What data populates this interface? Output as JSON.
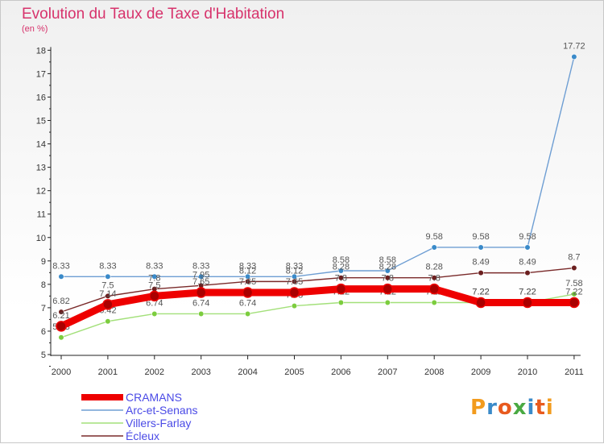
{
  "title": "Evolution du Taux de Taxe d'Habitation",
  "unit": "(en %)",
  "logo": "Proxiti",
  "chart_data": {
    "type": "line",
    "title": "Evolution du Taux de Taxe d'Habitation",
    "ylabel": "(en %)",
    "xlabel": "",
    "ylim": [
      5,
      18
    ],
    "yticks": [
      "5",
      "6",
      "7",
      "8",
      "9",
      "10",
      "11",
      "12",
      "13",
      "14",
      "15",
      "16",
      "17",
      "18"
    ],
    "x": [
      "2000",
      "2001",
      "2002",
      "2003",
      "2004",
      "2005",
      "2006",
      "2007",
      "2008",
      "2009",
      "2010",
      "2011"
    ],
    "grid": false,
    "legend_position": "bottom-left",
    "series": [
      {
        "name": "Arc-et-Senans",
        "color": "#6e9ed3",
        "marker": "#3a8ac9",
        "values": [
          8.33,
          8.33,
          8.33,
          8.33,
          8.33,
          8.33,
          8.58,
          8.58,
          9.58,
          9.58,
          9.58,
          17.72
        ],
        "labels": [
          "8.33",
          "8.33",
          "8.33",
          "8.33",
          "8.33",
          "8.33",
          "8.58",
          "8.58",
          "9.58",
          "9.58",
          "9.58",
          "17.72"
        ]
      },
      {
        "name": "Villers-Farlay",
        "color": "#a3e07a",
        "marker": "#7ccd3e",
        "values": [
          5.73,
          6.42,
          6.74,
          6.74,
          6.74,
          7.08,
          7.22,
          7.22,
          7.22,
          7.22,
          7.22,
          7.58
        ],
        "labels": [
          "5.73",
          "6.42",
          "6.74",
          "6.74",
          "6.74",
          "7.08",
          "7.22",
          "7.22",
          "7.22",
          "7.22",
          "7.22",
          "7.58"
        ]
      },
      {
        "name": "Écleux",
        "color": "#7a2a2a",
        "marker": "#6b1f1f",
        "values": [
          6.82,
          7.5,
          7.8,
          7.95,
          8.12,
          8.12,
          8.28,
          8.28,
          8.28,
          8.49,
          8.49,
          8.7
        ],
        "labels": [
          "6.82",
          "7.5",
          "7.8",
          "7.95",
          "8.12",
          "8.12",
          "8.28",
          "8.28",
          "8.28",
          "8.49",
          "8.49",
          "8.7"
        ]
      },
      {
        "name": "CRAMANS",
        "color": "#ee0000",
        "marker": "#aa0000",
        "values": [
          6.21,
          7.14,
          7.5,
          7.65,
          7.65,
          7.65,
          7.8,
          7.8,
          7.8,
          7.22,
          7.22,
          7.22
        ],
        "labels": [
          "6.21",
          "7.14",
          "7.5",
          "7.65",
          "7.65",
          "7.65",
          "7.8",
          "7.8",
          "7.8",
          "7.22",
          "7.22",
          "7.22"
        ]
      }
    ],
    "legend": [
      "CRAMANS",
      "Arc-et-Senans",
      "Villers-Farlay",
      "Écleux"
    ]
  }
}
